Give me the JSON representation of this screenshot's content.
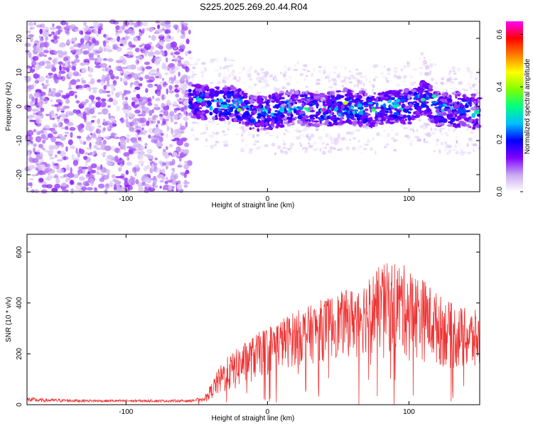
{
  "title": "S225.2025.269.20.44.R04",
  "chart_data": [
    {
      "type": "heatmap",
      "xlabel": "Height of straight line (km)",
      "ylabel": "Frequency (Hz)",
      "xlim": [
        -170,
        150
      ],
      "ylim": [
        -25,
        25
      ],
      "xticks": [
        -100,
        0,
        100
      ],
      "yticks": [
        -20,
        -10,
        0,
        10,
        20
      ],
      "colorbar": {
        "label": "Normalized spectral amplitude",
        "range": [
          0.0,
          0.65
        ],
        "ticks": [
          0.0,
          0.2,
          0.4,
          0.6
        ],
        "colormap": [
          "#ffffff",
          "#c8a8f0",
          "#8000ff",
          "#0000ff",
          "#00c0ff",
          "#00ff80",
          "#80ff00",
          "#ffff00",
          "#ff8000",
          "#ff0000",
          "#ff00ff"
        ]
      },
      "noise_region_x": [
        -170,
        -55
      ],
      "signal_band": {
        "x_start": -55,
        "x_end": 150,
        "center_freq": [
          [
            -55,
            2
          ],
          [
            -40,
            1
          ],
          [
            -25,
            1
          ],
          [
            -10,
            -2
          ],
          [
            0,
            -2
          ],
          [
            10,
            -1
          ],
          [
            20,
            0
          ],
          [
            30,
            -1
          ],
          [
            40,
            -1
          ],
          [
            55,
            0
          ],
          [
            70,
            -1
          ],
          [
            85,
            0
          ],
          [
            100,
            0
          ],
          [
            110,
            3
          ],
          [
            120,
            -1
          ],
          [
            140,
            -1
          ],
          [
            150,
            -2
          ]
        ],
        "width_hz": 5,
        "peak_amplitude": 0.65,
        "peak_x": 40
      }
    },
    {
      "type": "line",
      "xlabel": "Height of straight line (km)",
      "ylabel": "SNR (10 * v/v)",
      "xlim": [
        -170,
        150
      ],
      "ylim": [
        0,
        670
      ],
      "xticks": [
        -100,
        0,
        100
      ],
      "yticks": [
        0,
        200,
        400,
        600
      ],
      "series": [
        {
          "color": "#ee3333",
          "envelope": [
            [
              -170,
              30
            ],
            [
              -160,
              25
            ],
            [
              -120,
              20
            ],
            [
              -80,
              20
            ],
            [
              -55,
              20
            ],
            [
              -45,
              30
            ],
            [
              -40,
              80
            ],
            [
              -35,
              140
            ],
            [
              -30,
              180
            ],
            [
              -20,
              230
            ],
            [
              -10,
              270
            ],
            [
              0,
              310
            ],
            [
              10,
              340
            ],
            [
              20,
              370
            ],
            [
              30,
              390
            ],
            [
              40,
              420
            ],
            [
              50,
              440
            ],
            [
              60,
              460
            ],
            [
              70,
              500
            ],
            [
              80,
              550
            ],
            [
              90,
              570
            ],
            [
              100,
              540
            ],
            [
              110,
              500
            ],
            [
              120,
              440
            ],
            [
              130,
              400
            ],
            [
              140,
              380
            ],
            [
              150,
              370
            ]
          ],
          "baseline": [
            [
              -170,
              10
            ],
            [
              -55,
              10
            ],
            [
              -45,
              15
            ],
            [
              -35,
              30
            ],
            [
              -20,
              60
            ],
            [
              -10,
              90
            ],
            [
              0,
              120
            ],
            [
              20,
              150
            ],
            [
              40,
              170
            ],
            [
              60,
              190
            ],
            [
              80,
              200
            ],
            [
              100,
              180
            ],
            [
              120,
              150
            ],
            [
              140,
              120
            ],
            [
              150,
              110
            ]
          ]
        }
      ]
    }
  ]
}
